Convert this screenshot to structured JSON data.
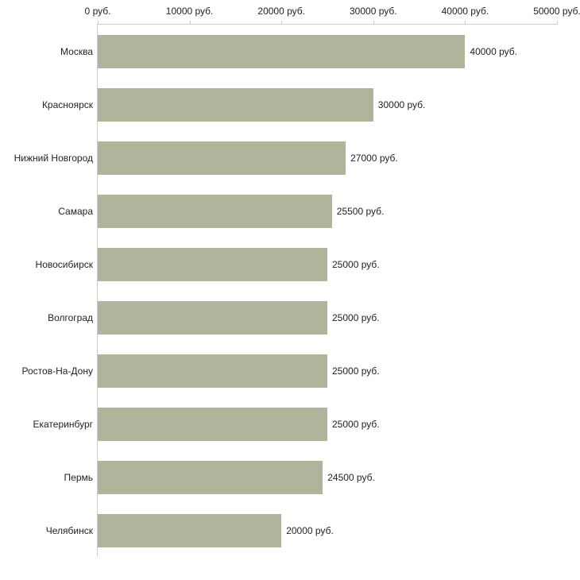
{
  "chart_data": {
    "type": "bar",
    "orientation": "horizontal",
    "title": "",
    "xlabel": "",
    "ylabel": "",
    "categories": [
      "Москва",
      "Красноярск",
      "Нижний Новгород",
      "Самара",
      "Новосибирск",
      "Волгоград",
      "Ростов-На-Дону",
      "Екатеринбург",
      "Пермь",
      "Челябинск"
    ],
    "values": [
      40000,
      30000,
      27000,
      25500,
      25000,
      25000,
      25000,
      25000,
      24500,
      20000
    ],
    "value_labels": [
      "40000 руб.",
      "30000 руб.",
      "27000 руб.",
      "25500 руб.",
      "25000 руб.",
      "25000 руб.",
      "25000 руб.",
      "25000 руб.",
      "24500 руб.",
      "20000 руб."
    ],
    "xlim": [
      0,
      50000
    ],
    "x_ticks": [
      0,
      10000,
      20000,
      30000,
      40000,
      50000
    ],
    "x_tick_labels": [
      "0 руб.",
      "10000 руб.",
      "20000 руб.",
      "30000 руб.",
      "40000 руб.",
      "50000 руб."
    ],
    "bar_color": "#aeb59b",
    "axis_color": "#cccccc",
    "text_color": "#222222",
    "grid": false,
    "legend": "none",
    "axis_position": "top"
  }
}
